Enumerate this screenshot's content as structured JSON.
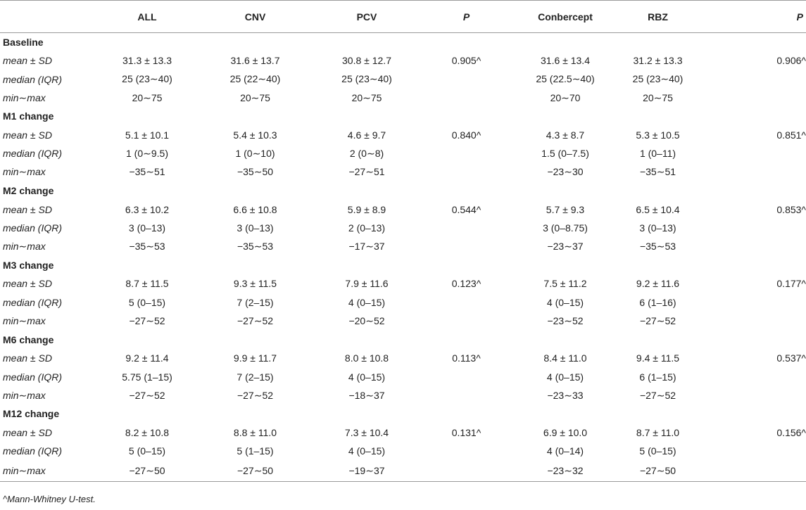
{
  "headers": [
    "",
    "ALL",
    "CNV",
    "PCV",
    "P",
    "Conbercept",
    "RBZ",
    "P"
  ],
  "sections": [
    {
      "title": "Baseline",
      "rows": [
        {
          "label": "mean ± SD",
          "all": "31.3 ± 13.3",
          "cnv": "31.6 ± 13.7",
          "pcv": "30.8 ± 12.7",
          "p1": "0.905^",
          "conbercept": "31.6 ± 13.4",
          "rbz": "31.2 ± 13.3",
          "p2": "0.906^"
        },
        {
          "label": "median (IQR)",
          "all": "25 (23∼40)",
          "cnv": "25 (22∼40)",
          "pcv": "25 (23∼40)",
          "p1": "",
          "conbercept": "25 (22.5∼40)",
          "rbz": "25 (23∼40)",
          "p2": ""
        },
        {
          "label": "min∼max",
          "all": "20∼75",
          "cnv": "20∼75",
          "pcv": "20∼75",
          "p1": "",
          "conbercept": "20∼70",
          "rbz": "20∼75",
          "p2": ""
        }
      ]
    },
    {
      "title": "M1 change",
      "rows": [
        {
          "label": "mean ± SD",
          "all": "5.1 ± 10.1",
          "cnv": "5.4 ± 10.3",
          "pcv": "4.6 ± 9.7",
          "p1": "0.840^",
          "conbercept": "4.3 ± 8.7",
          "rbz": "5.3 ± 10.5",
          "p2": "0.851^"
        },
        {
          "label": "median (IQR)",
          "all": "1 (0∼9.5)",
          "cnv": "1 (0∼10)",
          "pcv": "2 (0∼8)",
          "p1": "",
          "conbercept": "1.5 (0–7.5)",
          "rbz": "1 (0–11)",
          "p2": ""
        },
        {
          "label": "min∼max",
          "all": "−35∼51",
          "cnv": "−35∼50",
          "pcv": "−27∼51",
          "p1": "",
          "conbercept": "−23∼30",
          "rbz": "−35∼51",
          "p2": ""
        }
      ]
    },
    {
      "title": "M2 change",
      "rows": [
        {
          "label": "mean ± SD",
          "all": "6.3 ± 10.2",
          "cnv": "6.6 ± 10.8",
          "pcv": "5.9 ± 8.9",
          "p1": "0.544^",
          "conbercept": "5.7 ± 9.3",
          "rbz": "6.5 ± 10.4",
          "p2": "0.853^"
        },
        {
          "label": "median (IQR)",
          "all": "3 (0–13)",
          "cnv": "3 (0–13)",
          "pcv": "2 (0–13)",
          "p1": "",
          "conbercept": "3 (0–8.75)",
          "rbz": "3 (0–13)",
          "p2": ""
        },
        {
          "label": "min∼max",
          "all": "−35∼53",
          "cnv": "−35∼53",
          "pcv": "−17∼37",
          "p1": "",
          "conbercept": "−23∼37",
          "rbz": "−35∼53",
          "p2": ""
        }
      ]
    },
    {
      "title": "M3 change",
      "rows": [
        {
          "label": "mean ± SD",
          "all": "8.7 ± 11.5",
          "cnv": "9.3 ± 11.5",
          "pcv": "7.9 ± 11.6",
          "p1": "0.123^",
          "conbercept": "7.5 ± 11.2",
          "rbz": "9.2 ± 11.6",
          "p2": "0.177^"
        },
        {
          "label": "median (IQR)",
          "all": "5 (0–15)",
          "cnv": "7 (2–15)",
          "pcv": "4 (0–15)",
          "p1": "",
          "conbercept": "4 (0–15)",
          "rbz": "6 (1–16)",
          "p2": ""
        },
        {
          "label": "min∼max",
          "all": "−27∼52",
          "cnv": "−27∼52",
          "pcv": "−20∼52",
          "p1": "",
          "conbercept": "−23∼52",
          "rbz": "−27∼52",
          "p2": ""
        }
      ]
    },
    {
      "title": "M6 change",
      "rows": [
        {
          "label": "mean ± SD",
          "all": "9.2 ± 11.4",
          "cnv": "9.9 ± 11.7",
          "pcv": "8.0 ± 10.8",
          "p1": "0.113^",
          "conbercept": "8.4 ± 11.0",
          "rbz": "9.4 ± 11.5",
          "p2": "0.537^"
        },
        {
          "label": "median (IQR)",
          "all": "5.75 (1–15)",
          "cnv": "7 (2–15)",
          "pcv": "4 (0–15)",
          "p1": "",
          "conbercept": "4 (0–15)",
          "rbz": "6 (1–15)",
          "p2": ""
        },
        {
          "label": "min∼max",
          "all": "−27∼52",
          "cnv": "−27∼52",
          "pcv": "−18∼37",
          "p1": "",
          "conbercept": "−23∼33",
          "rbz": "−27∼52",
          "p2": ""
        }
      ]
    },
    {
      "title": "M12 change",
      "rows": [
        {
          "label": "mean ± SD",
          "all": "8.2 ± 10.8",
          "cnv": "8.8 ± 11.0",
          "pcv": "7.3 ± 10.4",
          "p1": "0.131^",
          "conbercept": "6.9 ± 10.0",
          "rbz": "8.7 ± 11.0",
          "p2": "0.156^"
        },
        {
          "label": "median (IQR)",
          "all": "5 (0–15)",
          "cnv": "5 (1–15)",
          "pcv": "4 (0–15)",
          "p1": "",
          "conbercept": "4 (0–14)",
          "rbz": "5 (0–15)",
          "p2": ""
        },
        {
          "label": "min∼max",
          "all": "−27∼50",
          "cnv": "−27∼50",
          "pcv": "−19∼37",
          "p1": "",
          "conbercept": "−23∼32",
          "rbz": "−27∼50",
          "p2": ""
        }
      ]
    }
  ],
  "footnote": "^Mann-Whitney U-test."
}
